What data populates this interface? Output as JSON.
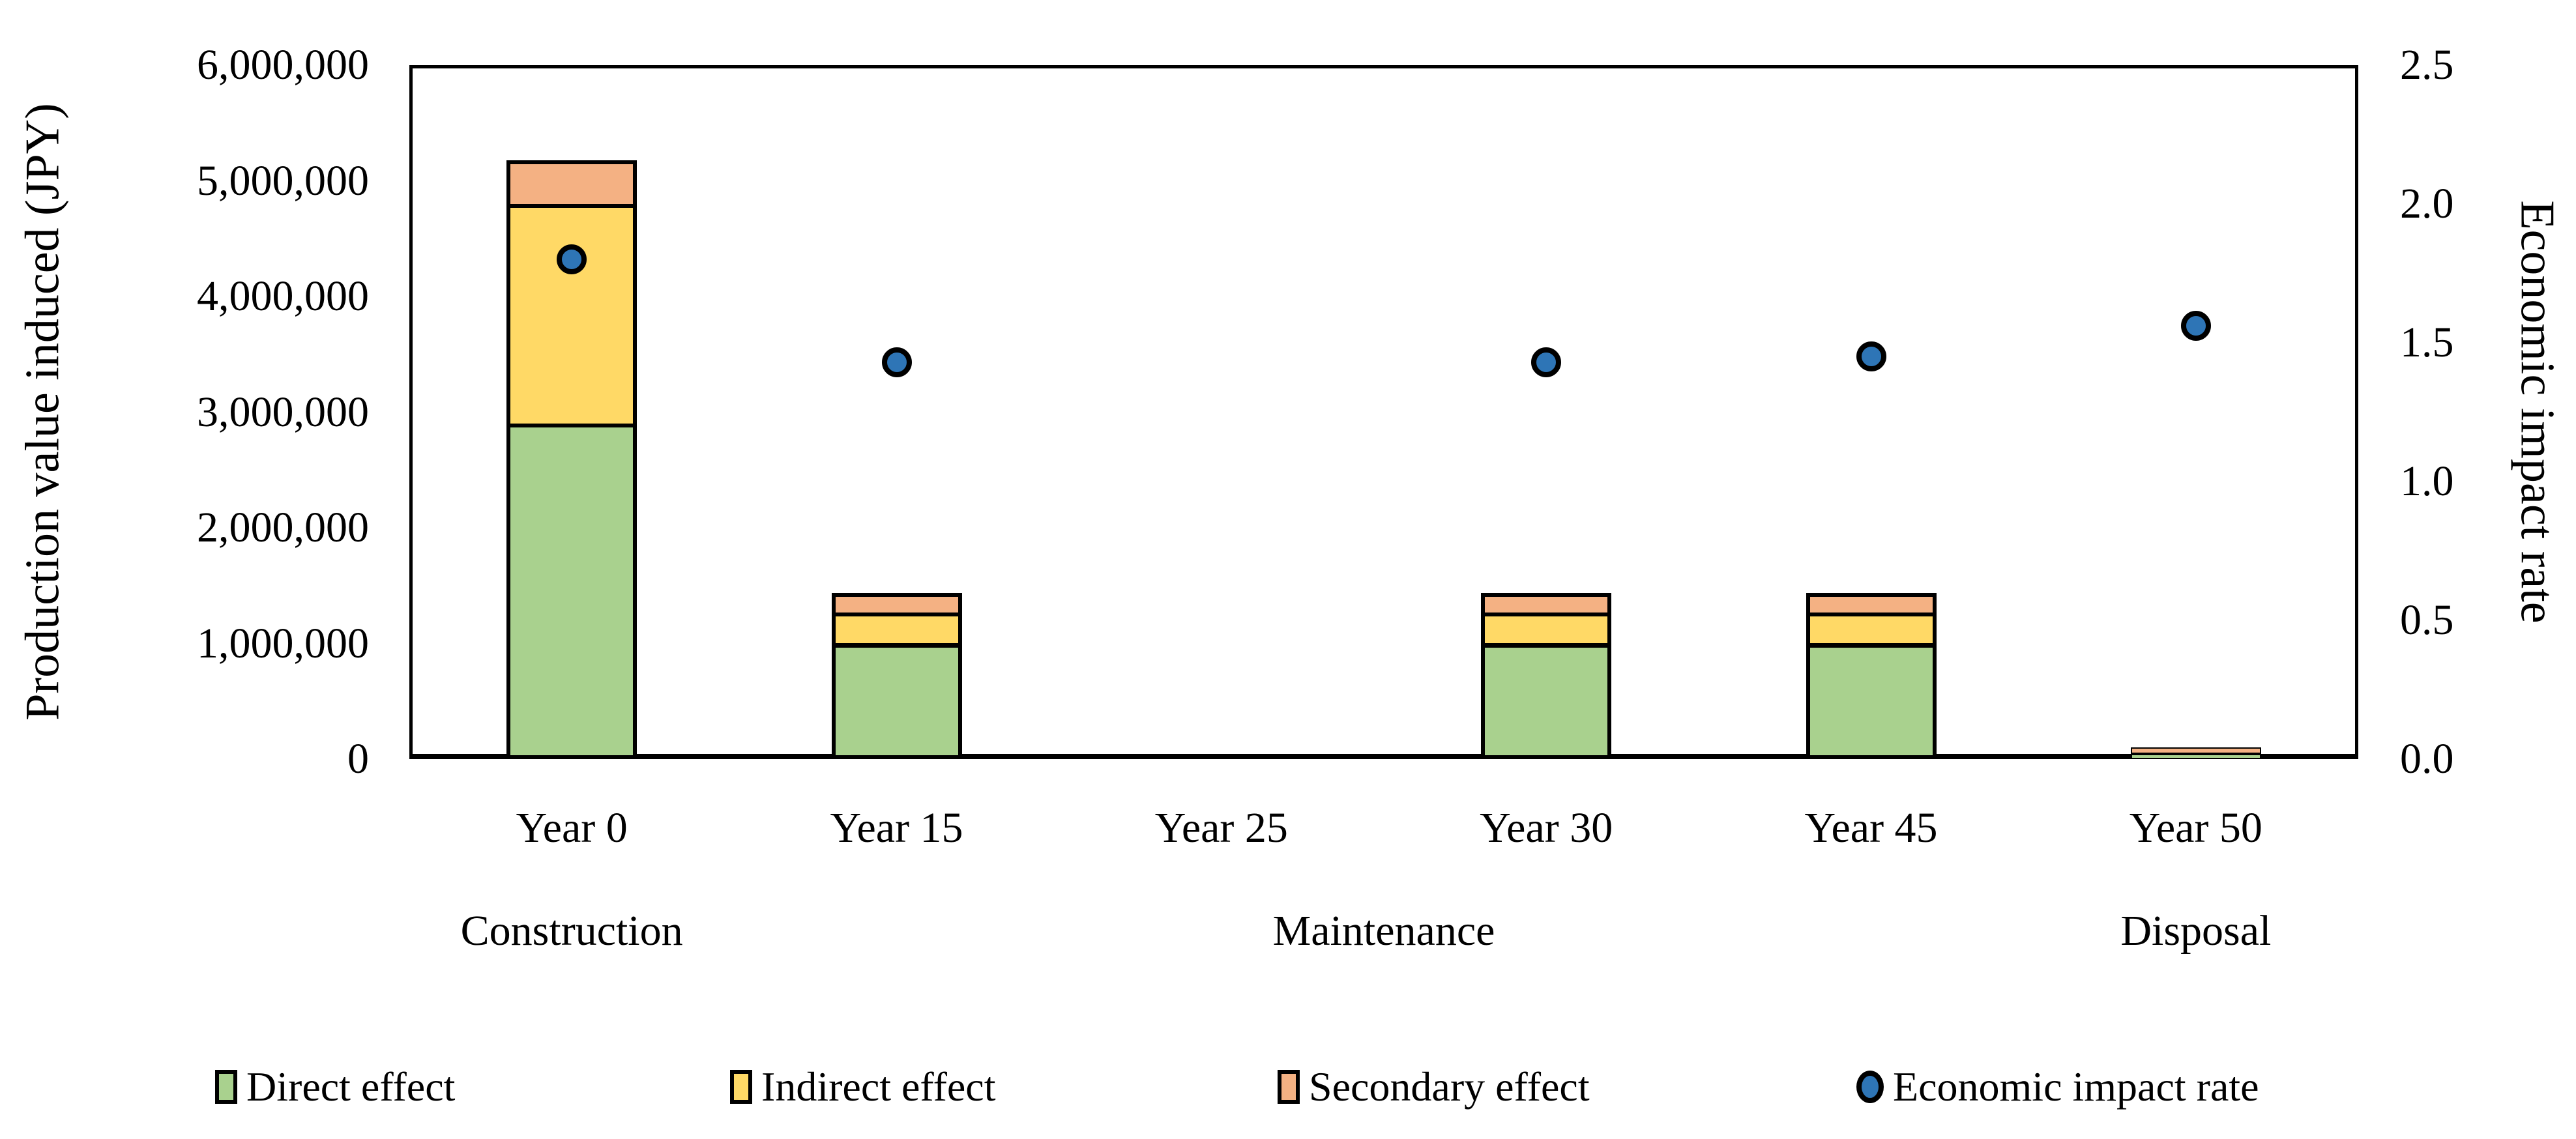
{
  "chart_data": {
    "type": "combo",
    "subtypes": [
      "stacked-bar",
      "scatter"
    ],
    "grid": false,
    "legend_position": "bottom",
    "categories": [
      "Year 0",
      "Year 15",
      "Year 25",
      "Year 30",
      "Year 45",
      "Year 50"
    ],
    "phase_labels": [
      {
        "label": "Construction",
        "between": [
          0,
          0
        ]
      },
      {
        "label": "Maintenance",
        "between": [
          2,
          3
        ]
      },
      {
        "label": "Disposal",
        "between": [
          5,
          5
        ]
      }
    ],
    "series": [
      {
        "name": "Direct effect",
        "type": "bar",
        "axis": "left",
        "color": "#A9D18E",
        "values": [
          2900000,
          1000000,
          0,
          1000000,
          1000000,
          65000
        ]
      },
      {
        "name": "Indirect effect",
        "type": "bar",
        "axis": "left",
        "color": "#FFD966",
        "values": [
          1900000,
          265000,
          0,
          265000,
          265000,
          12000
        ]
      },
      {
        "name": "Secondary effect",
        "type": "bar",
        "axis": "left",
        "color": "#F4B183",
        "values": [
          380000,
          170000,
          0,
          170000,
          170000,
          23000
        ]
      },
      {
        "name": "Economic impact rate",
        "type": "scatter",
        "axis": "right",
        "color": "#2E75B6",
        "values": [
          1.8,
          1.43,
          null,
          1.43,
          1.45,
          1.56
        ]
      }
    ],
    "left_axis": {
      "title": "Production value induced (JPY)",
      "min": 0,
      "max": 6000000,
      "step": 1000000,
      "tick_labels": [
        "0",
        "1,000,000",
        "2,000,000",
        "3,000,000",
        "4,000,000",
        "5,000,000",
        "6,000,000"
      ]
    },
    "right_axis": {
      "title": "Economic impact rate",
      "min": 0,
      "max": 2.5,
      "step": 0.5,
      "tick_labels": [
        "0.0",
        "0.5",
        "1.0",
        "1.5",
        "2.0",
        "2.5"
      ]
    },
    "colors": {
      "bar_border": "#000000",
      "marker_fill": "#2E75B6"
    }
  }
}
